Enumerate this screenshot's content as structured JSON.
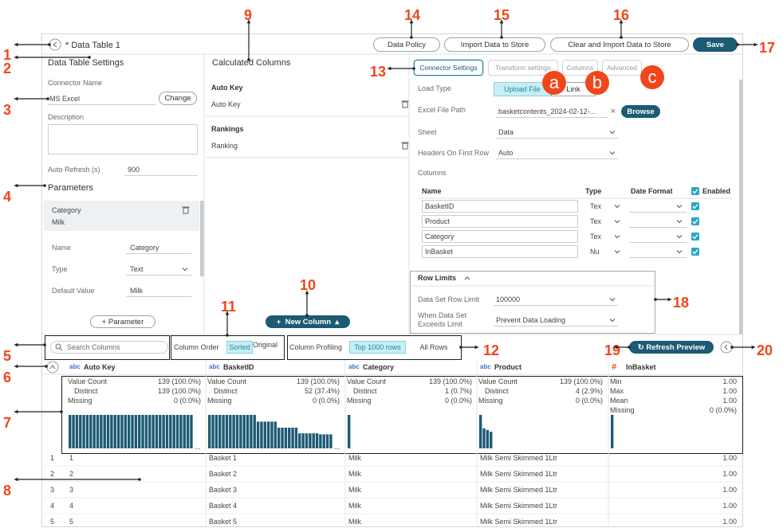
{
  "callouts": [
    1,
    2,
    3,
    4,
    5,
    6,
    7,
    8,
    9,
    10,
    11,
    12,
    13,
    14,
    15,
    16,
    17,
    18,
    19,
    20
  ],
  "letters": [
    "a",
    "b",
    "c"
  ],
  "header": {
    "title": "* Data Table 1",
    "buttons": [
      "Data Policy",
      "Import Data to Store",
      "Clear and Import Data to Store",
      "Save"
    ]
  },
  "settings": {
    "title": "Data Table Settings",
    "connector_label": "Connector Name",
    "connector_value": "MS Excel",
    "change": "Change",
    "description_label": "Description",
    "refresh_label": "Auto Refresh (s)",
    "refresh_value": "900",
    "parameters_title": "Parameters",
    "parameter": {
      "name": "Category",
      "value": "Milk"
    },
    "fields": [
      [
        "Name",
        "Category"
      ],
      [
        "Type",
        "Text"
      ],
      [
        "Default Value",
        "Milk"
      ]
    ],
    "add_parameter": "Parameter"
  },
  "calculated": {
    "title": "Calculated Columns",
    "groups": [
      {
        "name": "Auto Key",
        "item": "Auto Key"
      },
      {
        "name": "Rankings",
        "item": "Ranking"
      }
    ],
    "new_column": "New Column"
  },
  "connector": {
    "tabs": [
      "Connector Settings",
      "Transform settings",
      "Columns",
      "Advanced"
    ],
    "load_type": {
      "label": "Load Type",
      "options": [
        "Upload File",
        "Link"
      ]
    },
    "file_path": {
      "label": "Excel File Path",
      "value": "basketcontents_2024-02-12-...",
      "button": "Browse"
    },
    "sheet": {
      "label": "Sheet",
      "value": "Data"
    },
    "headers_row": {
      "label": "Headers On First Row",
      "value": "Auto"
    },
    "columns": {
      "label": "Columns",
      "headers": [
        "Name",
        "Type",
        "Date Format",
        "Enabled"
      ],
      "rows": [
        [
          "BasketID",
          "Tex"
        ],
        [
          "Product",
          "Tex"
        ],
        [
          "Category",
          "Tex"
        ],
        [
          "InBasket",
          "Nu"
        ]
      ]
    },
    "row_limits": {
      "title": "Row Limits",
      "limit_label": "Data Set Row Limit",
      "limit_value": "100000",
      "exceed_label": "When Data Set Exceeds Limit",
      "exceed_value": "Prevent Data Loading"
    }
  },
  "toolbar": {
    "search": "Search Columns",
    "order_label": "Column Order",
    "order_options": [
      "Sorted",
      "Original"
    ],
    "profiling_label": "Column Profiling",
    "profiling_options": [
      "Top 1000 rows",
      "All Rows"
    ],
    "refresh": "Refresh Preview"
  },
  "grid": {
    "columns": [
      {
        "type": "abc",
        "name": "Auto Key"
      },
      {
        "type": "abc",
        "name": "BasketID"
      },
      {
        "type": "abc",
        "name": "Category"
      },
      {
        "type": "abc",
        "name": "Product"
      },
      {
        "type": "#",
        "name": "InBasket"
      }
    ],
    "profile": [
      [
        [
          "Value Count",
          "139 (100.0%)"
        ],
        [
          "Distinct",
          "139 (100.0%)"
        ],
        [
          "Missing",
          "0 (0.0%)"
        ]
      ],
      [
        [
          "Value Count",
          "139 (100.0%)"
        ],
        [
          "Distinct",
          "52 (37.4%)"
        ],
        [
          "Missing",
          "0 (0.0%)"
        ]
      ],
      [
        [
          "Value Count",
          "139 (100.0%)"
        ],
        [
          "Distinct",
          "1 (0.7%)"
        ],
        [
          "Missing",
          "0 (0.0%)"
        ]
      ],
      [
        [
          "Value Count",
          "139 (100.0%)"
        ],
        [
          "Distinct",
          "4 (2.9%)"
        ],
        [
          "Missing",
          "0 (0.0%)"
        ]
      ],
      [
        [
          "Min",
          "1.00"
        ],
        [
          "Max",
          "1.00"
        ],
        [
          "Mean",
          "1.00"
        ],
        [
          "Missing",
          "0 (0.0%)"
        ]
      ]
    ],
    "distribution": [
      [
        1,
        1,
        1,
        1,
        1,
        1,
        1,
        1,
        1,
        1,
        1,
        1,
        1,
        1,
        1,
        1,
        1,
        1,
        1,
        1,
        1,
        1,
        1,
        1,
        1,
        1,
        1,
        1,
        1,
        1,
        1,
        1,
        1,
        1,
        1,
        1
      ],
      [
        1,
        1,
        1,
        1,
        1,
        1,
        1,
        1,
        1,
        1,
        1,
        1,
        1,
        1,
        0.8,
        0.8,
        0.8,
        0.8,
        0.8,
        0.8,
        0.62,
        0.62,
        0.62,
        0.62,
        0.62,
        0.62,
        0.45,
        0.45,
        0.45,
        0.45,
        0.45,
        0.45,
        0.42,
        0.42,
        0.42,
        0.42
      ],
      [
        1
      ],
      [
        1,
        0.6,
        0.55,
        0.5
      ],
      [
        1
      ]
    ],
    "more": "...",
    "rows": [
      [
        "1",
        "1",
        "Basket 1",
        "Milk",
        "Milk Semi Skimmed 1Ltr",
        "1.00"
      ],
      [
        "2",
        "2",
        "Basket 2",
        "Milk",
        "Milk Semi Skimmed 1Ltr",
        "1.00"
      ],
      [
        "3",
        "3",
        "Basket 3",
        "Milk",
        "Milk Semi Skimmed 1Ltr",
        "1.00"
      ],
      [
        "4",
        "4",
        "Basket 4",
        "Milk",
        "Milk Semi Skimmed 1Ltr",
        "1.00"
      ],
      [
        "5",
        "5",
        "Basket 5",
        "Milk",
        "Milk Semi Skimmed 1Ltr",
        "1.00"
      ]
    ]
  }
}
